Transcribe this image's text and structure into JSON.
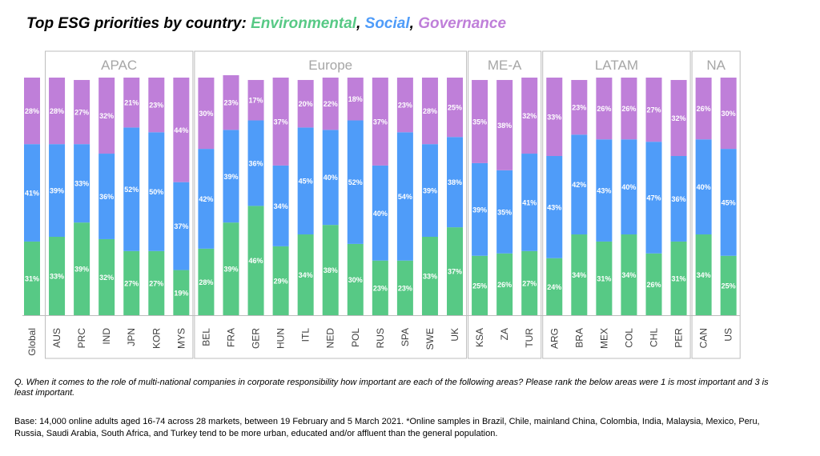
{
  "title": {
    "prefix": "Top ESG priorities by country: ",
    "environmental": "Environmental",
    "sep1": ", ",
    "social": "Social",
    "sep2": ", ",
    "governance": "Governance"
  },
  "colors": {
    "environmental": "#57c985",
    "social": "#4f9cf9",
    "governance": "#bf7fd9",
    "frame": "#bdbdbd",
    "region_label": "#a6a6a6"
  },
  "chart_data": {
    "type": "bar",
    "stacked": true,
    "percent": true,
    "categories": [
      "Global",
      "AUS",
      "PRC",
      "IND",
      "JPN",
      "KOR",
      "MYS",
      "BEL",
      "FRA",
      "GER",
      "HUN",
      "ITL",
      "NED",
      "POL",
      "RUS",
      "SPA",
      "SWE",
      "UK",
      "KSA",
      "ZA",
      "TUR",
      "ARG",
      "BRA",
      "MEX",
      "COL",
      "CHL",
      "PER",
      "CAN",
      "US"
    ],
    "series": [
      {
        "name": "Environmental",
        "values": [
          31,
          33,
          39,
          32,
          27,
          27,
          19,
          28,
          39,
          46,
          29,
          34,
          38,
          30,
          23,
          23,
          33,
          37,
          25,
          26,
          27,
          24,
          34,
          31,
          34,
          26,
          31,
          34,
          25
        ]
      },
      {
        "name": "Social",
        "values": [
          41,
          39,
          33,
          36,
          52,
          50,
          37,
          42,
          39,
          36,
          34,
          45,
          40,
          52,
          40,
          54,
          39,
          38,
          39,
          35,
          41,
          43,
          42,
          43,
          40,
          47,
          36,
          40,
          45
        ]
      },
      {
        "name": "Governance",
        "values": [
          28,
          28,
          27,
          32,
          21,
          23,
          44,
          30,
          23,
          17,
          37,
          20,
          22,
          18,
          37,
          23,
          28,
          25,
          35,
          38,
          32,
          33,
          23,
          26,
          26,
          27,
          32,
          26,
          30
        ]
      }
    ],
    "groups": [
      {
        "name": "APAC",
        "start": 1,
        "end": 6
      },
      {
        "name": "Europe",
        "start": 7,
        "end": 17
      },
      {
        "name": "ME-A",
        "start": 18,
        "end": 20
      },
      {
        "name": "LATAM",
        "start": 21,
        "end": 26
      },
      {
        "name": "NA",
        "start": 27,
        "end": 28
      }
    ],
    "ylim": [
      0,
      100
    ]
  },
  "notes": {
    "question": "Q. When it comes to the role of multi-national companies in corporate responsibility how important are each of the following areas? Please rank the below areas were 1 is most important and 3 is least important.",
    "base": "Base: 14,000 online adults aged 16-74 across 28 markets, between 19 February and 5 March 2021. *Online samples in Brazil, Chile, mainland China, Colombia, India, Malaysia, Mexico, Peru, Russia, Saudi Arabia, South Africa, and Turkey tend to be more urban, educated and/or affluent than the general population."
  }
}
